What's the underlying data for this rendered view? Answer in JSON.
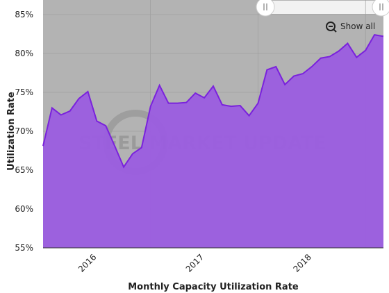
{
  "chart_data": {
    "type": "area",
    "title": "Monthly Capacity Utilization Rate",
    "y_axis_label": "Utilization Rate",
    "watermark": "STEEL MARKET UPDATE",
    "button": "Show all",
    "categories": [
      null,
      null,
      null,
      null,
      null,
      null,
      "2016",
      null,
      null,
      null,
      null,
      null,
      null,
      null,
      null,
      null,
      null,
      null,
      "2017",
      null,
      null,
      null,
      null,
      null,
      null,
      null,
      null,
      null,
      null,
      null,
      "2018",
      null,
      null,
      null,
      null,
      null,
      null,
      null,
      null
    ],
    "values": [
      68.1,
      73.0,
      72.1,
      72.6,
      74.2,
      75.1,
      71.3,
      70.7,
      68.1,
      65.4,
      67.1,
      67.9,
      73.2,
      75.9,
      73.6,
      73.6,
      73.7,
      74.9,
      74.3,
      75.8,
      73.4,
      73.2,
      73.3,
      72.0,
      73.6,
      77.9,
      78.3,
      76.0,
      77.1,
      77.4,
      78.3,
      79.4,
      79.6,
      80.3,
      81.3,
      79.5,
      80.4,
      82.4,
      82.2
    ],
    "color": "#9b5de0",
    "line_color": "#7a22dc",
    "ylim": [
      55,
      85
    ],
    "yticks": [
      {
        "value": 55,
        "label": "55%"
      },
      {
        "value": 60,
        "label": "60%"
      },
      {
        "value": 65,
        "label": "65%"
      },
      {
        "value": 70,
        "label": "70%"
      },
      {
        "value": 75,
        "label": "75%"
      },
      {
        "value": 80,
        "label": "80%"
      },
      {
        "value": 85,
        "label": "85%"
      }
    ],
    "grid": true
  }
}
